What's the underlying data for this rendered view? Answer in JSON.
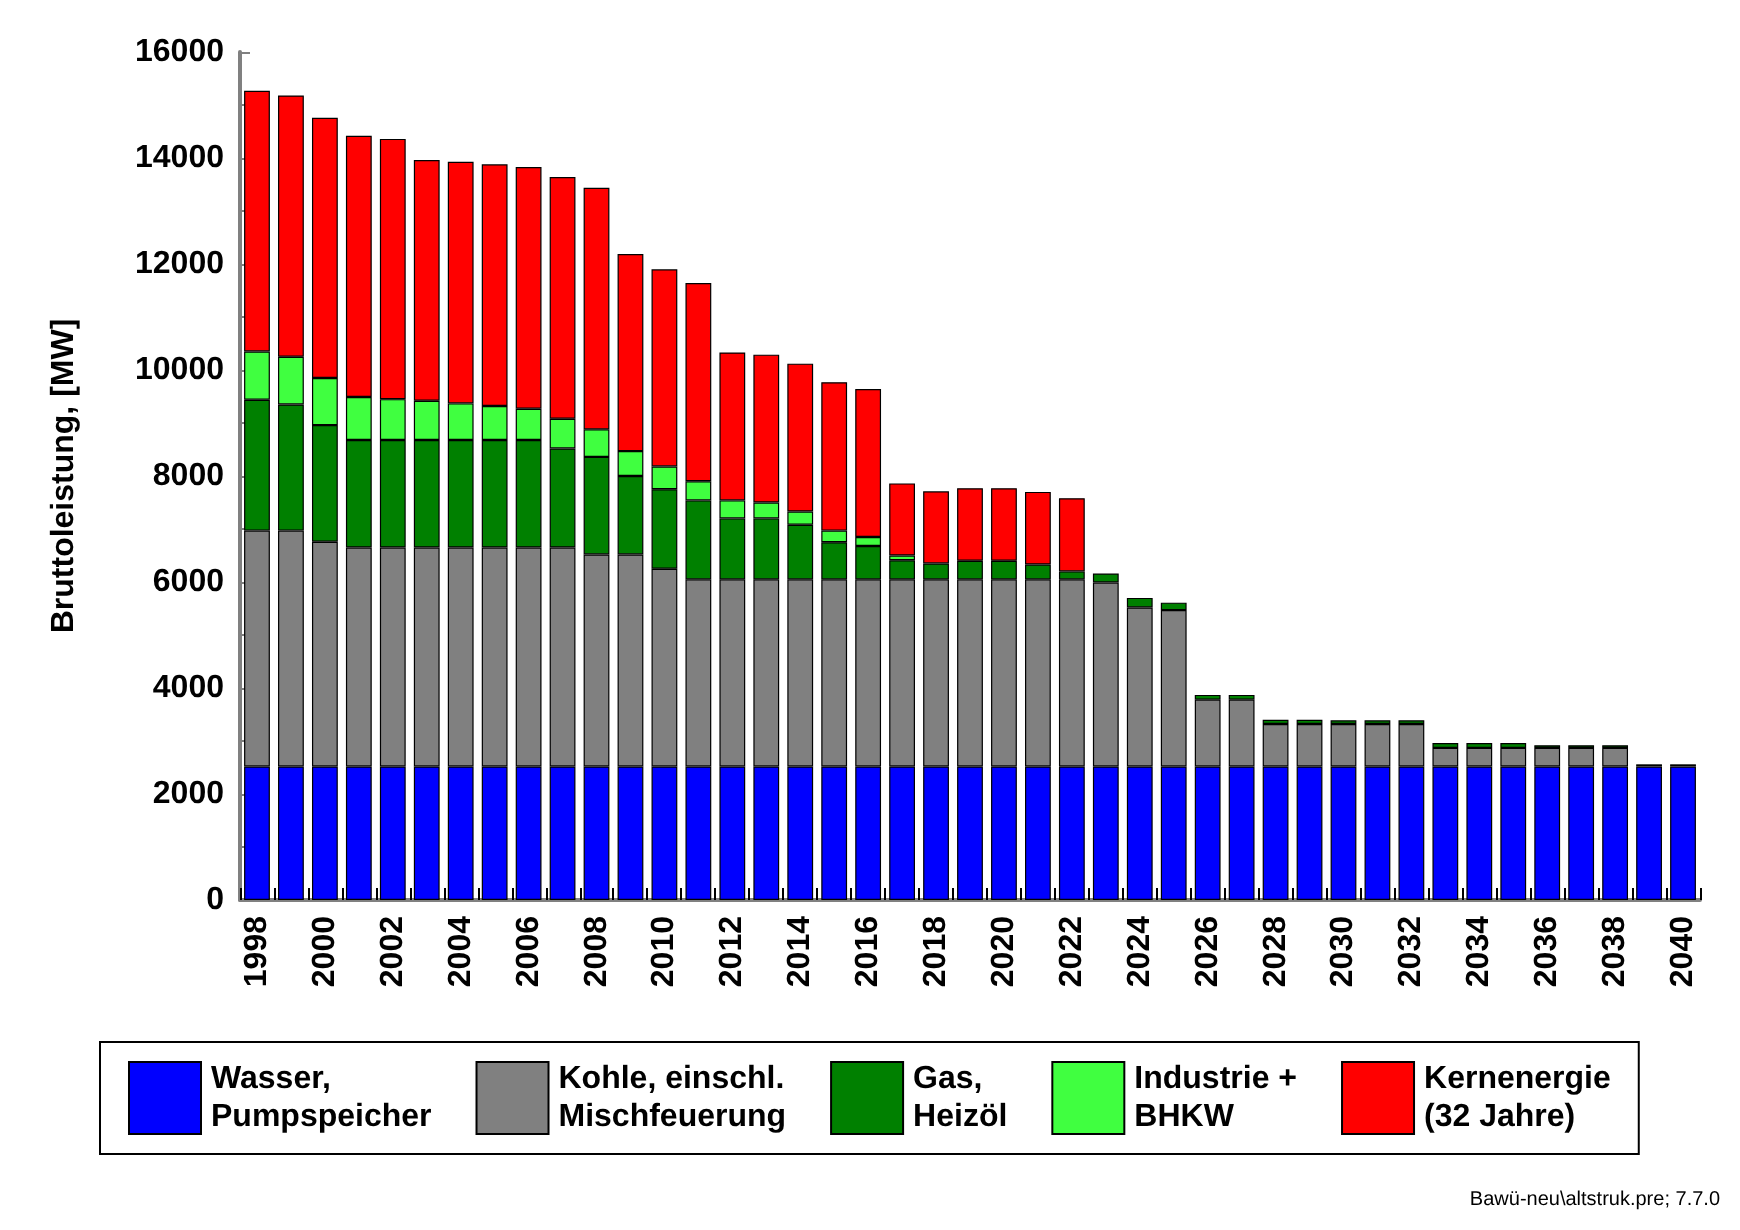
{
  "chart_data": {
    "type": "bar",
    "stacked": true,
    "ylabel": "Bruttoleistung, [MW]",
    "categories": [
      "1998",
      null,
      "2000",
      null,
      "2002",
      null,
      "2004",
      null,
      "2006",
      null,
      "2008",
      null,
      "2010",
      null,
      "2012",
      null,
      "2014",
      null,
      "2016",
      null,
      "2018",
      null,
      "2020",
      null,
      "2022",
      null,
      "2024",
      null,
      "2026",
      null,
      "2028",
      null,
      "2030",
      null,
      "2032",
      null,
      "2034",
      null,
      "2036",
      null,
      "2038",
      null,
      "2040"
    ],
    "series": [
      {
        "name": "Wasser,\nPumpspeicher",
        "color": "#0000ff",
        "values": [
          2520,
          2520,
          2520,
          2520,
          2520,
          2520,
          2520,
          2520,
          2520,
          2520,
          2520,
          2520,
          2520,
          2520,
          2520,
          2520,
          2520,
          2520,
          2520,
          2520,
          2520,
          2520,
          2520,
          2520,
          2520,
          2520,
          2520,
          2520,
          2520,
          2520,
          2520,
          2520,
          2520,
          2520,
          2520,
          2520,
          2520,
          2520,
          2520,
          2520,
          2520,
          2520,
          2520
        ]
      },
      {
        "name": "Kohle, einschl.\nMischfeuerung",
        "color": "#808080",
        "values": [
          4450,
          4450,
          4240,
          4130,
          4130,
          4130,
          4130,
          4130,
          4130,
          4130,
          4000,
          4000,
          3730,
          3530,
          3530,
          3530,
          3530,
          3530,
          3530,
          3530,
          3530,
          3530,
          3530,
          3530,
          3530,
          3470,
          3000,
          2950,
          1260,
          1260,
          800,
          800,
          800,
          800,
          800,
          350,
          350,
          350,
          350,
          350,
          350,
          0,
          0
        ]
      },
      {
        "name": "Gas,\nHeizöl",
        "color": "#008000",
        "values": [
          2470,
          2380,
          2200,
          2030,
          2030,
          2030,
          2030,
          2030,
          2030,
          1870,
          1840,
          1480,
          1500,
          1490,
          1150,
          1150,
          1030,
          700,
          630,
          360,
          300,
          350,
          350,
          280,
          150,
          170,
          180,
          140,
          90,
          90,
          80,
          80,
          70,
          70,
          70,
          90,
          90,
          90,
          50,
          50,
          50,
          40,
          40
        ]
      },
      {
        "name": "Industrie +\nBHKW",
        "color": "#40ff40",
        "values": [
          910,
          900,
          890,
          810,
          770,
          740,
          690,
          640,
          590,
          560,
          520,
          470,
          430,
          360,
          340,
          300,
          250,
          220,
          170,
          90,
          null,
          0,
          0,
          0,
          0,
          0,
          0,
          0,
          0,
          0,
          0,
          0,
          0,
          0,
          0,
          0,
          0,
          0,
          0,
          0,
          0,
          0,
          0
        ]
      },
      {
        "name": "Kernenergie\n(32 Jahre)",
        "color": "#ff0000",
        "values": [
          4920,
          4930,
          4910,
          4930,
          4910,
          4540,
          4560,
          4560,
          4560,
          4560,
          4560,
          3720,
          3720,
          3740,
          2790,
          2790,
          2790,
          2800,
          2790,
          1360,
          1360,
          1370,
          1370,
          1370,
          1380,
          0,
          0,
          0,
          0,
          0,
          0,
          0,
          0,
          0,
          0,
          0,
          0,
          0,
          0,
          0,
          0,
          0,
          0
        ]
      }
    ],
    "ylim": [
      0,
      16000
    ],
    "yticks": [
      0,
      {
        "value": 1000,
        "label": null
      },
      2000,
      {
        "value": 3000,
        "label": null
      },
      4000,
      {
        "value": 5000,
        "label": null
      },
      6000,
      {
        "value": 7000,
        "label": null
      },
      8000,
      {
        "value": 9000,
        "label": null
      },
      10000,
      {
        "value": 11000,
        "label": null
      },
      12000,
      {
        "value": 13000,
        "label": null
      },
      14000,
      {
        "value": 15000,
        "label": null
      },
      16000
    ],
    "grid": false,
    "legend": "bottom",
    "annotations": [
      "Bawü-neu\\altstruk.pre; 7.7.0"
    ]
  }
}
